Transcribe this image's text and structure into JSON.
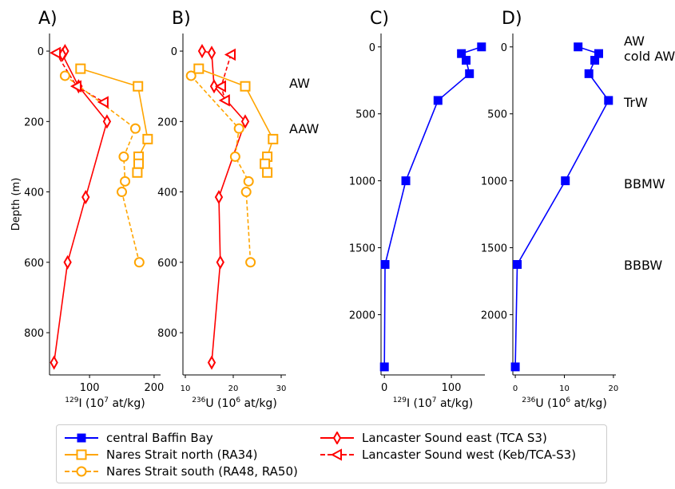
{
  "chart_data": [
    {
      "panel": "A)",
      "type": "line",
      "xlabel_iso": "129",
      "xlabel_rest": "I (10",
      "xlabel_exp": "7",
      "xlabel_tail": " at/kg)",
      "ylabel": "Depth (m)",
      "xlim": [
        38,
        210
      ],
      "ylim": [
        920,
        -50
      ],
      "xticks": [
        100,
        200
      ],
      "yticks": [
        0,
        200,
        400,
        600,
        800
      ],
      "series": [
        {
          "name": "Lancaster Sound east (TCA S3)",
          "color": "#ff0000",
          "marker": "diamond",
          "dash": false,
          "x": [
            62,
            58,
            83,
            127,
            94,
            66,
            45
          ],
          "y": [
            0,
            10,
            100,
            200,
            415,
            600,
            885
          ]
        },
        {
          "name": "Lancaster Sound west (Keb/TCA-S3)",
          "color": "#ff0000",
          "marker": "triangle-left",
          "dash": true,
          "x": [
            48,
            80,
            122
          ],
          "y": [
            5,
            100,
            145
          ]
        },
        {
          "name": "Nares Strait north (RA34)",
          "color": "#ffa500",
          "marker": "square",
          "dash": false,
          "x": [
            86,
            175,
            190,
            176,
            176,
            174
          ],
          "y": [
            50,
            100,
            250,
            300,
            320,
            345
          ]
        },
        {
          "name": "Nares Strait south (RA48, RA50)",
          "color": "#ffa500",
          "marker": "circle",
          "dash": true,
          "x": [
            62,
            171,
            153,
            155,
            150,
            177
          ],
          "y": [
            70,
            220,
            300,
            370,
            400,
            600
          ]
        }
      ]
    },
    {
      "panel": "B)",
      "type": "line",
      "xlabel_iso": "236",
      "xlabel_rest": "U (10",
      "xlabel_exp": "6",
      "xlabel_tail": " at/kg)",
      "xlim": [
        9.5,
        31
      ],
      "ylim": [
        920,
        -50
      ],
      "xticks": [
        10,
        20,
        30
      ],
      "yticks": [
        0,
        200,
        400,
        600,
        800
      ],
      "annotations": [
        "AW",
        "AAW"
      ],
      "series": [
        {
          "name": "Lancaster Sound east (TCA S3)",
          "color": "#ff0000",
          "marker": "diamond",
          "dash": false,
          "x": [
            13.5,
            15.5,
            16,
            22.5,
            17,
            17.3,
            15.5
          ],
          "y": [
            0,
            5,
            100,
            200,
            415,
            600,
            885
          ]
        },
        {
          "name": "Lancaster Sound west (Keb/TCA-S3)",
          "color": "#ff0000",
          "marker": "triangle-left",
          "dash": true,
          "x": [
            19.5,
            17.5,
            18.3
          ],
          "y": [
            10,
            100,
            140
          ]
        },
        {
          "name": "Nares Strait north (RA34)",
          "color": "#ffa500",
          "marker": "square",
          "dash": false,
          "x": [
            12.8,
            22.5,
            28.3,
            27.1,
            26.6,
            27.1
          ],
          "y": [
            50,
            100,
            250,
            300,
            320,
            345
          ]
        },
        {
          "name": "Nares Strait south (RA48, RA50)",
          "color": "#ffa500",
          "marker": "circle",
          "dash": true,
          "x": [
            11.2,
            21.2,
            20.4,
            23.2,
            22.7,
            23.6
          ],
          "y": [
            70,
            220,
            300,
            370,
            400,
            600
          ]
        }
      ]
    },
    {
      "panel": "C)",
      "type": "line",
      "xlabel_iso": "129",
      "xlabel_rest": "I (10",
      "xlabel_exp": "7",
      "xlabel_tail": " at/kg)",
      "xlim": [
        -5,
        150
      ],
      "ylim": [
        2450,
        -100
      ],
      "xticks": [
        0,
        100
      ],
      "yticks": [
        0,
        500,
        1000,
        1500,
        2000
      ],
      "series": [
        {
          "name": "central Baffin Bay",
          "color": "#0000ff",
          "marker": "square",
          "dash": false,
          "x": [
            145,
            115,
            122,
            127,
            80,
            32,
            1,
            0
          ],
          "y": [
            0,
            50,
            100,
            200,
            400,
            1000,
            1625,
            2390
          ]
        }
      ]
    },
    {
      "panel": "D)",
      "type": "line",
      "xlabel_iso": "236",
      "xlabel_rest": "U (10",
      "xlabel_exp": "6",
      "xlabel_tail": " at/kg)",
      "xlim": [
        -0.5,
        20.5
      ],
      "ylim": [
        2450,
        -100
      ],
      "xticks": [
        0,
        10,
        20
      ],
      "yticks": [
        0,
        500,
        1000,
        1500,
        2000
      ],
      "annotations": [
        "AW",
        "cold AW",
        "TrW",
        "BBMW",
        "BBBW"
      ],
      "series": [
        {
          "name": "central Baffin Bay",
          "color": "#0000ff",
          "marker": "square",
          "dash": false,
          "x": [
            12.8,
            17,
            16.2,
            15,
            19,
            10.2,
            0.4,
            0
          ],
          "y": [
            0,
            50,
            100,
            200,
            400,
            1000,
            1625,
            2390
          ]
        }
      ]
    }
  ],
  "legend": [
    {
      "label": "central Baffin Bay",
      "color": "#0000ff",
      "marker": "square",
      "dash": false
    },
    {
      "label": "Nares Strait north (RA34)",
      "color": "#ffa500",
      "marker": "square",
      "dash": false
    },
    {
      "label": "Nares Strait south (RA48, RA50)",
      "color": "#ffa500",
      "marker": "circle",
      "dash": true
    },
    {
      "label": "Lancaster Sound east (TCA S3)",
      "color": "#ff0000",
      "marker": "diamond",
      "dash": false
    },
    {
      "label": "Lancaster Sound west (Keb/TCA-S3)",
      "color": "#ff0000",
      "marker": "triangle-left",
      "dash": true
    }
  ]
}
